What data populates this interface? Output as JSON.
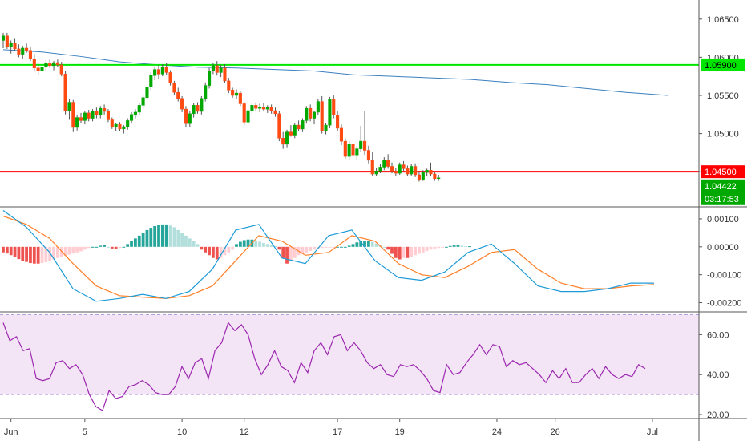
{
  "chart_data": {
    "type": "candlestick",
    "main": {
      "y_ticks": [
        "1.06500",
        "1.06000",
        "1.05500",
        "1.05000",
        "1.04500"
      ],
      "ylim": [
        1.0405,
        1.0675
      ],
      "candles": [
        [
          1.0622,
          1.0632,
          1.0612,
          1.0628
        ],
        [
          1.0628,
          1.0632,
          1.0611,
          1.0614
        ],
        [
          1.0614,
          1.0622,
          1.0605,
          1.0618
        ],
        [
          1.0618,
          1.0624,
          1.0608,
          1.0611
        ],
        [
          1.0611,
          1.0617,
          1.06,
          1.0604
        ],
        [
          1.0604,
          1.0615,
          1.0598,
          1.0612
        ],
        [
          1.0612,
          1.0618,
          1.0606,
          1.0609
        ],
        [
          1.0609,
          1.0613,
          1.0595,
          1.0598
        ],
        [
          1.0598,
          1.0604,
          1.0582,
          1.0586
        ],
        [
          1.0586,
          1.0592,
          1.0577,
          1.0582
        ],
        [
          1.0582,
          1.059,
          1.0575,
          1.0587
        ],
        [
          1.0587,
          1.0596,
          1.0583,
          1.0592
        ],
        [
          1.0592,
          1.0598,
          1.0586,
          1.0589
        ],
        [
          1.0589,
          1.0595,
          1.0583,
          1.0593
        ],
        [
          1.0593,
          1.0597,
          1.0587,
          1.059
        ],
        [
          1.059,
          1.0594,
          1.0575,
          1.0578
        ],
        [
          1.0578,
          1.0582,
          1.0525,
          1.053
        ],
        [
          1.053,
          1.0545,
          1.0518,
          1.0541
        ],
        [
          1.0541,
          1.0544,
          1.0502,
          1.0508
        ],
        [
          1.0508,
          1.0524,
          1.0504,
          1.0521
        ],
        [
          1.0521,
          1.0527,
          1.0514,
          1.0517
        ],
        [
          1.0517,
          1.053,
          1.0512,
          1.0527
        ],
        [
          1.0527,
          1.0531,
          1.0516,
          1.052
        ],
        [
          1.052,
          1.0532,
          1.0516,
          1.0529
        ],
        [
          1.0529,
          1.0534,
          1.052,
          1.0524
        ],
        [
          1.0524,
          1.0536,
          1.052,
          1.0533
        ],
        [
          1.0533,
          1.0538,
          1.0525,
          1.0529
        ],
        [
          1.0529,
          1.0532,
          1.0515,
          1.0518
        ],
        [
          1.0518,
          1.0521,
          1.0506,
          1.0509
        ],
        [
          1.0509,
          1.0514,
          1.0503,
          1.0512
        ],
        [
          1.0512,
          1.0515,
          1.0503,
          1.0506
        ],
        [
          1.0506,
          1.0511,
          1.05,
          1.0509
        ],
        [
          1.0509,
          1.052,
          1.0505,
          1.0517
        ],
        [
          1.0517,
          1.0528,
          1.0513,
          1.0525
        ],
        [
          1.0525,
          1.0532,
          1.052,
          1.0528
        ],
        [
          1.0528,
          1.054,
          1.0524,
          1.0537
        ],
        [
          1.0537,
          1.055,
          1.0533,
          1.0547
        ],
        [
          1.0547,
          1.0564,
          1.0544,
          1.0561
        ],
        [
          1.0561,
          1.058,
          1.0557,
          1.0576
        ],
        [
          1.0576,
          1.0588,
          1.057,
          1.0584
        ],
        [
          1.0584,
          1.059,
          1.0572,
          1.0578
        ],
        [
          1.0578,
          1.0591,
          1.0575,
          1.0587
        ],
        [
          1.0587,
          1.0592,
          1.0577,
          1.058
        ],
        [
          1.058,
          1.0583,
          1.0563,
          1.0566
        ],
        [
          1.0566,
          1.0569,
          1.055,
          1.0554
        ],
        [
          1.0554,
          1.056,
          1.0542,
          1.0546
        ],
        [
          1.0546,
          1.0549,
          1.0528,
          1.0532
        ],
        [
          1.0532,
          1.0536,
          1.0508,
          1.0513
        ],
        [
          1.0513,
          1.0529,
          1.0509,
          1.0526
        ],
        [
          1.0526,
          1.054,
          1.0521,
          1.0537
        ],
        [
          1.0537,
          1.0541,
          1.0526,
          1.0529
        ],
        [
          1.0529,
          1.0549,
          1.0525,
          1.0546
        ],
        [
          1.0546,
          1.0567,
          1.0542,
          1.0563
        ],
        [
          1.0563,
          1.0586,
          1.0559,
          1.0582
        ],
        [
          1.0582,
          1.0593,
          1.0578,
          1.0589
        ],
        [
          1.0589,
          1.0595,
          1.0576,
          1.058
        ],
        [
          1.058,
          1.059,
          1.0574,
          1.0586
        ],
        [
          1.0586,
          1.0591,
          1.0566,
          1.0569
        ],
        [
          1.0569,
          1.0573,
          1.0553,
          1.0557
        ],
        [
          1.0557,
          1.056,
          1.0547,
          1.055
        ],
        [
          1.055,
          1.0558,
          1.0545,
          1.0553
        ],
        [
          1.0553,
          1.0556,
          1.0536,
          1.0539
        ],
        [
          1.0539,
          1.0542,
          1.0511,
          1.0515
        ],
        [
          1.0515,
          1.0533,
          1.051,
          1.053
        ],
        [
          1.053,
          1.054,
          1.0526,
          1.0537
        ],
        [
          1.0537,
          1.0541,
          1.0529,
          1.0533
        ],
        [
          1.0533,
          1.0539,
          1.0528,
          1.0535
        ],
        [
          1.0535,
          1.054,
          1.053,
          1.0532
        ],
        [
          1.0532,
          1.0537,
          1.0527,
          1.0535
        ],
        [
          1.0535,
          1.0538,
          1.0526,
          1.053
        ],
        [
          1.053,
          1.0534,
          1.0522,
          1.0526
        ],
        [
          1.0526,
          1.053,
          1.049,
          1.0494
        ],
        [
          1.0494,
          1.0502,
          1.048,
          1.0486
        ],
        [
          1.0486,
          1.0505,
          1.0482,
          1.0502
        ],
        [
          1.0502,
          1.0511,
          1.0496,
          1.0498
        ],
        [
          1.0498,
          1.0514,
          1.0494,
          1.0511
        ],
        [
          1.0511,
          1.0517,
          1.0503,
          1.0506
        ],
        [
          1.0506,
          1.052,
          1.0502,
          1.0517
        ],
        [
          1.0517,
          1.0536,
          1.0513,
          1.0533
        ],
        [
          1.0533,
          1.0538,
          1.0516,
          1.052
        ],
        [
          1.052,
          1.053,
          1.0512,
          1.0528
        ],
        [
          1.0528,
          1.0545,
          1.0524,
          1.0542
        ],
        [
          1.0542,
          1.0549,
          1.05,
          1.0504
        ],
        [
          1.0504,
          1.0514,
          1.0499,
          1.0511
        ],
        [
          1.0511,
          1.0548,
          1.0507,
          1.0545
        ],
        [
          1.0545,
          1.055,
          1.052,
          1.0524
        ],
        [
          1.0524,
          1.053,
          1.0503,
          1.0507
        ],
        [
          1.0507,
          1.0512,
          1.0485,
          1.049
        ],
        [
          1.049,
          1.0494,
          1.0467,
          1.047
        ],
        [
          1.047,
          1.049,
          1.0466,
          1.0486
        ],
        [
          1.0486,
          1.0491,
          1.0468,
          1.0472
        ],
        [
          1.0472,
          1.0484,
          1.0466,
          1.048
        ],
        [
          1.048,
          1.051,
          1.0476,
          1.049
        ],
        [
          1.049,
          1.053,
          1.0472,
          1.0478
        ],
        [
          1.0478,
          1.0484,
          1.0461,
          1.0465
        ],
        [
          1.0465,
          1.0476,
          1.0444,
          1.0447
        ],
        [
          1.0447,
          1.0455,
          1.0444,
          1.0451
        ],
        [
          1.0451,
          1.046,
          1.0448,
          1.0456
        ],
        [
          1.0456,
          1.0469,
          1.0452,
          1.0465
        ],
        [
          1.0465,
          1.0473,
          1.0454,
          1.0457
        ],
        [
          1.0457,
          1.0462,
          1.0448,
          1.0451
        ],
        [
          1.0451,
          1.0455,
          1.0445,
          1.0448
        ],
        [
          1.0448,
          1.0462,
          1.0446,
          1.0459
        ],
        [
          1.0459,
          1.0464,
          1.0451,
          1.0454
        ],
        [
          1.0454,
          1.0458,
          1.0444,
          1.0447
        ],
        [
          1.0447,
          1.046,
          1.0445,
          1.0457
        ],
        [
          1.0457,
          1.0461,
          1.0443,
          1.0446
        ],
        [
          1.0446,
          1.0449,
          1.0437,
          1.044
        ],
        [
          1.044,
          1.0452,
          1.0438,
          1.0449
        ],
        [
          1.0449,
          1.0454,
          1.0444,
          1.0452
        ],
        [
          1.0452,
          1.0462,
          1.0444,
          1.0447
        ],
        [
          1.0447,
          1.045,
          1.0438,
          1.0441
        ],
        [
          1.0441,
          1.0446,
          1.0438,
          1.0442
        ]
      ],
      "moving_average": [
        [
          0,
          1.061
        ],
        [
          10,
          1.0607
        ],
        [
          20,
          1.0601
        ],
        [
          30,
          1.0594
        ],
        [
          40,
          1.059
        ],
        [
          50,
          1.0587
        ],
        [
          60,
          1.0586
        ],
        [
          70,
          1.0584
        ],
        [
          80,
          1.0582
        ],
        [
          90,
          1.0577
        ],
        [
          100,
          1.0575
        ],
        [
          110,
          1.0573
        ],
        [
          120,
          1.0571
        ],
        [
          130,
          1.0567
        ],
        [
          140,
          1.0564
        ],
        [
          150,
          1.0559
        ],
        [
          160,
          1.0554
        ],
        [
          171,
          1.055
        ]
      ],
      "horizontal_lines": [
        {
          "value": 1.059,
          "color": "#00e600",
          "label": "1.05900"
        },
        {
          "value": 1.045,
          "color": "#ff0000",
          "label": "1.04500"
        }
      ],
      "price_label": "1.04422",
      "countdown_label": "03:17:53"
    },
    "macd": {
      "y_ticks": [
        "0.00100",
        "0.00000",
        "-0.00100",
        "-0.00200"
      ],
      "ylim": [
        -0.0023,
        0.0014
      ],
      "histogram": [
        -0.0002,
        -0.00024,
        -0.0003,
        -0.00036,
        -0.00044,
        -0.0005,
        -0.00054,
        -0.00058,
        -0.0006,
        -0.0006,
        -0.00058,
        -0.00055,
        -0.0005,
        -0.00045,
        -0.0004,
        -0.00036,
        -0.00032,
        -0.00028,
        -0.00024,
        -0.0002,
        -0.00016,
        -0.0001,
        -4e-05,
        0,
        0,
        4e-05,
        6e-05,
        0,
        -6e-05,
        -8e-05,
        -4e-05,
        0,
        0.0001,
        0.0002,
        0.0003,
        0.0004,
        0.0005,
        0.0006,
        0.00068,
        0.00074,
        0.00078,
        0.0008,
        0.0008,
        0.00076,
        0.0007,
        0.0006,
        0.0005,
        0.0004,
        0.0003,
        0.0002,
        0.0001,
        -0.0001,
        -0.0002,
        -0.0003,
        -0.0004,
        -0.00045,
        -0.0004,
        -0.0003,
        -0.0002,
        -0.0001,
        0.0001,
        0.00018,
        0.00024,
        0.00026,
        0.00026,
        0.00022,
        0.00018,
        0.00014,
        0.0001,
        6e-05,
        2e-05,
        -0.0001,
        -0.0004,
        -0.0006,
        -0.0005,
        -0.0004,
        -0.0003,
        -0.00025,
        -0.0002,
        -0.00015,
        -0.0001,
        -6e-05,
        -4e-05,
        -3e-05,
        -2e-05,
        -1e-05,
        0,
        0,
        0,
        4e-05,
        0.0001,
        0.00016,
        0.0002,
        0.00022,
        0.00022,
        0.00018,
        0.00012,
        6e-05,
        0,
        -0.0001,
        -0.00025,
        -0.0004,
        -0.00045,
        -0.0004,
        -0.0004,
        -0.00035,
        -0.0003,
        -0.00025,
        -0.0002,
        -0.00015,
        -0.0001,
        -6e-05,
        -4e-05,
        -2e-05,
        0,
        3e-05,
        5e-05,
        6e-05,
        4e-05,
        2e-05,
        2e-05
      ],
      "macd_line": [
        [
          0,
          0.0013
        ],
        [
          10,
          0.0007
        ],
        [
          20,
          -0.0002
        ],
        [
          30,
          -0.0015
        ],
        [
          40,
          -0.00195
        ],
        [
          50,
          -0.00185
        ],
        [
          60,
          -0.0017
        ],
        [
          70,
          -0.00185
        ],
        [
          80,
          -0.0016
        ],
        [
          90,
          -0.0008
        ],
        [
          100,
          0.0006
        ],
        [
          110,
          0.0008
        ],
        [
          120,
          -0.0004
        ],
        [
          130,
          -0.0006
        ],
        [
          140,
          0.0004
        ],
        [
          150,
          0.0006
        ],
        [
          160,
          -0.0005
        ],
        [
          170,
          -0.0011
        ],
        [
          180,
          -0.0012
        ],
        [
          190,
          -0.0009
        ],
        [
          200,
          -0.0002
        ],
        [
          210,
          0.0001
        ],
        [
          220,
          -0.0006
        ],
        [
          230,
          -0.0014
        ],
        [
          240,
          -0.0016
        ],
        [
          250,
          -0.0016
        ],
        [
          260,
          -0.0015
        ],
        [
          270,
          -0.0013
        ],
        [
          280,
          -0.0013
        ]
      ],
      "signal_line": [
        [
          0,
          0.0011
        ],
        [
          10,
          0.0008
        ],
        [
          20,
          0.0003
        ],
        [
          30,
          -0.0006
        ],
        [
          40,
          -0.0014
        ],
        [
          50,
          -0.00175
        ],
        [
          60,
          -0.0018
        ],
        [
          70,
          -0.00185
        ],
        [
          80,
          -0.00175
        ],
        [
          90,
          -0.0014
        ],
        [
          100,
          -0.0005
        ],
        [
          110,
          0.0004
        ],
        [
          120,
          0.0002
        ],
        [
          130,
          -0.0003
        ],
        [
          140,
          -0.0002
        ],
        [
          150,
          0.0004
        ],
        [
          160,
          0.0002
        ],
        [
          170,
          -0.0006
        ],
        [
          180,
          -0.001
        ],
        [
          190,
          -0.0011
        ],
        [
          200,
          -0.0007
        ],
        [
          210,
          -0.0002
        ],
        [
          220,
          -0.0001
        ],
        [
          230,
          -0.0008
        ],
        [
          240,
          -0.0013
        ],
        [
          250,
          -0.0015
        ],
        [
          260,
          -0.0015
        ],
        [
          270,
          -0.0014
        ],
        [
          280,
          -0.00135
        ]
      ]
    },
    "rsi": {
      "y_ticks": [
        "60.00",
        "40.00",
        "20.00"
      ],
      "ylim": [
        18,
        71
      ],
      "upper_band": 70,
      "lower_band": 30,
      "values": [
        66,
        57,
        59,
        52,
        53,
        38,
        37,
        38,
        46,
        47,
        43,
        45,
        40,
        30,
        24,
        22,
        32,
        28,
        29,
        34,
        35,
        37,
        35,
        31,
        30,
        30,
        34,
        44,
        38,
        46,
        48,
        38,
        52,
        56,
        66,
        62,
        65,
        60,
        48,
        40,
        45,
        52,
        44,
        42,
        36,
        46,
        41,
        52,
        56,
        50,
        59,
        60,
        52,
        56,
        52,
        46,
        43,
        45,
        40,
        39,
        45,
        44,
        45,
        42,
        38,
        32,
        31,
        45,
        40,
        41,
        46,
        50,
        55,
        50,
        55,
        54,
        44,
        47,
        45,
        46,
        43,
        40,
        36,
        42,
        38,
        43,
        36,
        36,
        40,
        43,
        38,
        44,
        40,
        38,
        40,
        39,
        45,
        43
      ]
    },
    "x_ticks": [
      {
        "label": "Jun",
        "index": 2
      },
      {
        "label": "5",
        "index": 21
      },
      {
        "label": "10",
        "index": 46
      },
      {
        "label": "12",
        "index": 62
      },
      {
        "label": "17",
        "index": 86
      },
      {
        "label": "19",
        "index": 102
      },
      {
        "label": "24",
        "index": 127
      },
      {
        "label": "26",
        "index": 142
      },
      {
        "label": "Jul",
        "index": 167
      }
    ],
    "colors": {
      "up": "#00a800",
      "down": "#ff4a12",
      "wick": "#555555",
      "moving_average": "#3a7fc0",
      "macd_line": "#1e9bd7",
      "signal_line": "#ff7f27",
      "hist_pos_strong": "#26a69a",
      "hist_pos_weak": "#b2dfdb",
      "hist_neg_strong": "#ef5350",
      "hist_neg_weak": "#ffcdd2",
      "rsi_line": "#9c27b0",
      "rsi_band": "#f3e5f5",
      "grid": "#e6e6e6",
      "axis": "#555555"
    }
  }
}
